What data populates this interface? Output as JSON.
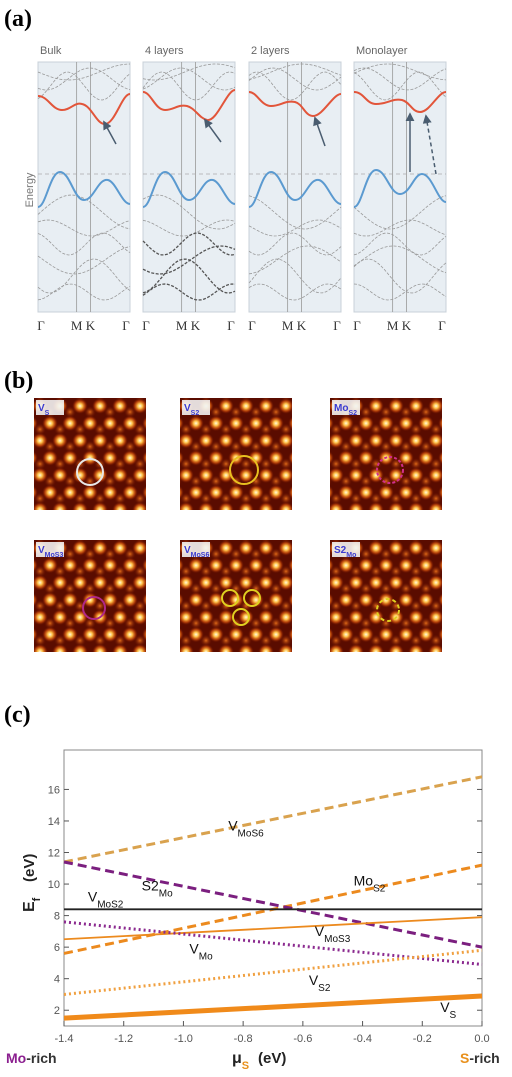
{
  "panel_a": {
    "label": "(a)",
    "axis_label": "Energy",
    "panels": [
      {
        "title": "Bulk",
        "kpoints": [
          "Γ",
          "M",
          "K",
          "Γ"
        ]
      },
      {
        "title": "4 layers",
        "kpoints": [
          "Γ",
          "M",
          "K",
          "Γ"
        ]
      },
      {
        "title": "2 layers",
        "kpoints": [
          "Γ",
          "M",
          "K",
          "Γ"
        ]
      },
      {
        "title": "Monolayer",
        "kpoints": [
          "Γ",
          "M",
          "K",
          "Γ"
        ]
      }
    ]
  },
  "panel_b": {
    "label": "(b)",
    "images": [
      {
        "base": "V",
        "sub": "S"
      },
      {
        "base": "V",
        "sub": "S2"
      },
      {
        "base": "Mo",
        "sub": "S2"
      },
      {
        "base": "V",
        "sub": "MoS3"
      },
      {
        "base": "V",
        "sub": "MoS6"
      },
      {
        "base": "S2",
        "sub": "Mo"
      }
    ]
  },
  "panel_c_label": "(c)",
  "chart_data": {
    "type": "line",
    "ylabel": {
      "base": "E",
      "sub": "f",
      "unit": "(eV)"
    },
    "xlabel": {
      "base": "μ",
      "sub": "S",
      "unit": "(eV)"
    },
    "left_note": {
      "head": "Mo",
      "tail": "-rich",
      "color": "#8b1f8f"
    },
    "right_note": {
      "head": "S",
      "tail": "-rich",
      "color": "#e8901c"
    },
    "x": [
      -1.4,
      0
    ],
    "xlim": [
      -1.4,
      0
    ],
    "ylim": [
      1,
      18.5
    ],
    "xticks": [
      -1.4,
      -1.2,
      {
        "value": -1,
        "label": "-1.0"
      },
      -0.8,
      -0.6,
      -0.4,
      -0.2,
      {
        "value": 0,
        "label": "0.0"
      }
    ],
    "yticks": [
      2,
      4,
      6,
      8,
      10,
      12,
      14,
      16
    ],
    "series": [
      {
        "name": "V",
        "name_sub": "MoS6",
        "color": "#d9a24e",
        "style": "dashed",
        "values": [
          11.4,
          16.8
        ]
      },
      {
        "name": "Mo",
        "name_sub": "S2",
        "color": "#ec8a1e",
        "style": "dashed",
        "values": [
          5.6,
          11.2
        ]
      },
      {
        "name": "S2",
        "name_sub": "Mo",
        "color": "#7b1f7f",
        "style": "dashed",
        "values": [
          11.4,
          6.0
        ]
      },
      {
        "name": "V",
        "name_sub": "MoS2",
        "color": "#222222",
        "style": "solid",
        "values": [
          8.4,
          8.4
        ]
      },
      {
        "name": "V",
        "name_sub": "MoS3",
        "color": "#ec8a1e",
        "style": "solid",
        "values": [
          6.5,
          7.9
        ]
      },
      {
        "name": "V",
        "name_sub": "Mo",
        "color": "#8b2a8f",
        "style": "dotted",
        "values": [
          7.6,
          4.9
        ]
      },
      {
        "name": "V",
        "name_sub": "S2",
        "color": "#f0a040",
        "style": "dotted",
        "values": [
          3.0,
          5.8
        ]
      },
      {
        "name": "V",
        "name_sub": "S",
        "color": "#f08a1a",
        "style": "thick",
        "values": [
          1.5,
          2.9
        ]
      }
    ]
  }
}
